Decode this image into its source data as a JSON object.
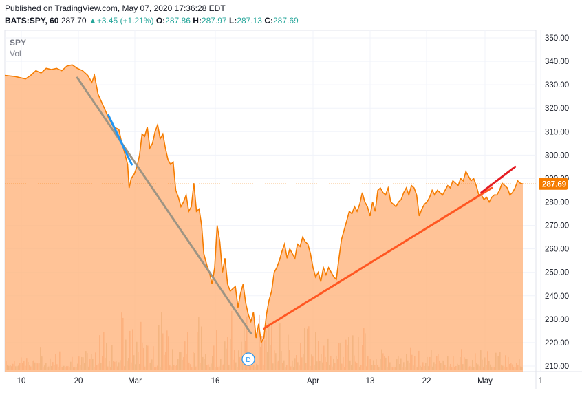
{
  "header": {
    "published": "Published on TradingView.com, May 07, 2020 17:36:28 EDT",
    "symbol": "BATS:SPY, 60",
    "last": "287.70",
    "change_icon": "triangle-up-icon",
    "change": "+3.45 (+1.21%)",
    "open_label": "O:",
    "open": "287.86",
    "high_label": "H:",
    "high": "287.97",
    "low_label": "L:",
    "low": "287.13",
    "close_label": "C:",
    "close": "287.69"
  },
  "legend": {
    "series": "SPY",
    "volume": "Vol"
  },
  "colors": {
    "price_line": "#f57c00",
    "price_fill": "#ffb27a",
    "up_change": "#26a69a",
    "volume_up": "#c3b58a",
    "volume_down": "#f0a27e",
    "trend_gray": "#9e9483",
    "trend_orange": "#ff5722",
    "trend_red": "#e51c23",
    "trend_blue": "#2196f3"
  },
  "dividend_marker": "D",
  "chart_data": {
    "type": "area",
    "series_name": "SPY",
    "x_ticks": [
      "10",
      "20",
      "Mar",
      "16",
      "Apr",
      "13",
      "22",
      "May",
      "1"
    ],
    "y_ticks": [
      "210.00",
      "220.00",
      "230.00",
      "240.00",
      "250.00",
      "260.00",
      "270.00",
      "280.00",
      "290.00",
      "300.00",
      "310.00",
      "320.00",
      "330.00",
      "340.00",
      "350.00"
    ],
    "ylim": [
      210,
      350
    ],
    "last_price_label": "287.69",
    "grid": true,
    "x_index_range": [
      0,
      100
    ],
    "points": [
      [
        0,
        334
      ],
      [
        2,
        333.5
      ],
      [
        4,
        332.5
      ],
      [
        5,
        334
      ],
      [
        6,
        336
      ],
      [
        7,
        335
      ],
      [
        8,
        337
      ],
      [
        9,
        336.5
      ],
      [
        10,
        337
      ],
      [
        11,
        336
      ],
      [
        12,
        338
      ],
      [
        13,
        338.5
      ],
      [
        14,
        337
      ],
      [
        15,
        336
      ],
      [
        16,
        334
      ],
      [
        16.8,
        331
      ],
      [
        17.3,
        334
      ],
      [
        18,
        326
      ],
      [
        19,
        321
      ],
      [
        20,
        316
      ],
      [
        21,
        312
      ],
      [
        22,
        311
      ],
      [
        22.5,
        306
      ],
      [
        23,
        302
      ],
      [
        23.7,
        296
      ],
      [
        24,
        286
      ],
      [
        24.4,
        290
      ],
      [
        25,
        292
      ],
      [
        25.5,
        295
      ],
      [
        26,
        300
      ],
      [
        26.5,
        309
      ],
      [
        27,
        308
      ],
      [
        27.5,
        312
      ],
      [
        28,
        303
      ],
      [
        28.5,
        305
      ],
      [
        29,
        310
      ],
      [
        29.5,
        313
      ],
      [
        30,
        307
      ],
      [
        30.5,
        309
      ],
      [
        31,
        303
      ],
      [
        31.5,
        298
      ],
      [
        32,
        296
      ],
      [
        32.5,
        297
      ],
      [
        33,
        285
      ],
      [
        33.5,
        282
      ],
      [
        34,
        278
      ],
      [
        34.5,
        280
      ],
      [
        35,
        283
      ],
      [
        35.5,
        276
      ],
      [
        36,
        278
      ],
      [
        36.5,
        288
      ],
      [
        37,
        276
      ],
      [
        37.5,
        277
      ],
      [
        38,
        270
      ],
      [
        38.4,
        258
      ],
      [
        39,
        253
      ],
      [
        39.5,
        250
      ],
      [
        40,
        245
      ],
      [
        40.5,
        252
      ],
      [
        41,
        270
      ],
      [
        41.5,
        263
      ],
      [
        42,
        250
      ],
      [
        42.5,
        256
      ],
      [
        43,
        245
      ],
      [
        43.5,
        242
      ],
      [
        44,
        243
      ],
      [
        44.5,
        244
      ],
      [
        45,
        235
      ],
      [
        45.5,
        241
      ],
      [
        46,
        245
      ],
      [
        46.5,
        237
      ],
      [
        47,
        232
      ],
      [
        47.5,
        229
      ],
      [
        48,
        233
      ],
      [
        48.5,
        222
      ],
      [
        49,
        228
      ],
      [
        49.5,
        220
      ],
      [
        50,
        222
      ],
      [
        50.5,
        232
      ],
      [
        51,
        238
      ],
      [
        51.5,
        242
      ],
      [
        52,
        250
      ],
      [
        52.5,
        252
      ],
      [
        53,
        255
      ],
      [
        53.5,
        259
      ],
      [
        54,
        262
      ],
      [
        54.5,
        256
      ],
      [
        55,
        260
      ],
      [
        55.5,
        258
      ],
      [
        56,
        256
      ],
      [
        56.5,
        262
      ],
      [
        57,
        261
      ],
      [
        57.5,
        265
      ],
      [
        58,
        263
      ],
      [
        58.5,
        262
      ],
      [
        59,
        258
      ],
      [
        59.5,
        252
      ],
      [
        60,
        248
      ],
      [
        60.5,
        250
      ],
      [
        61,
        246
      ],
      [
        61.5,
        252
      ],
      [
        62,
        249
      ],
      [
        62.5,
        252
      ],
      [
        63,
        250
      ],
      [
        63.5,
        248
      ],
      [
        64,
        247
      ],
      [
        64.5,
        256
      ],
      [
        65,
        264
      ],
      [
        65.5,
        268
      ],
      [
        66,
        272
      ],
      [
        66.5,
        276
      ],
      [
        67,
        275
      ],
      [
        67.5,
        278
      ],
      [
        68,
        276
      ],
      [
        68.5,
        279
      ],
      [
        69,
        284
      ],
      [
        69.5,
        280
      ],
      [
        70,
        278
      ],
      [
        70.5,
        274
      ],
      [
        71,
        280
      ],
      [
        71.5,
        276
      ],
      [
        72,
        285
      ],
      [
        72.5,
        286
      ],
      [
        73,
        284
      ],
      [
        73.5,
        283
      ],
      [
        74,
        286
      ],
      [
        74.5,
        280
      ],
      [
        75,
        279
      ],
      [
        75.5,
        278
      ],
      [
        76,
        280
      ],
      [
        76.5,
        281
      ],
      [
        77,
        284
      ],
      [
        77.5,
        286
      ],
      [
        78,
        283
      ],
      [
        78.5,
        287
      ],
      [
        79,
        286
      ],
      [
        79.5,
        283
      ],
      [
        80,
        274
      ],
      [
        80.5,
        277
      ],
      [
        81,
        279
      ],
      [
        81.5,
        280
      ],
      [
        82,
        282
      ],
      [
        82.5,
        285
      ],
      [
        83,
        283
      ],
      [
        83.5,
        285
      ],
      [
        84,
        284
      ],
      [
        84.5,
        283
      ],
      [
        85,
        285
      ],
      [
        85.5,
        287
      ],
      [
        86,
        286
      ],
      [
        86.5,
        289
      ],
      [
        87,
        288
      ],
      [
        87.5,
        287
      ],
      [
        88,
        290
      ],
      [
        88.5,
        289
      ],
      [
        89,
        293
      ],
      [
        89.5,
        291
      ],
      [
        90,
        289
      ],
      [
        90.5,
        290
      ],
      [
        91,
        287
      ],
      [
        91.5,
        283
      ],
      [
        92,
        283
      ],
      [
        92.5,
        281
      ],
      [
        93,
        282
      ],
      [
        93.5,
        280
      ],
      [
        94,
        282
      ],
      [
        94.5,
        283
      ],
      [
        95,
        283
      ],
      [
        95.5,
        285
      ],
      [
        96,
        288
      ],
      [
        96.5,
        287
      ],
      [
        97,
        286
      ],
      [
        97.5,
        283
      ],
      [
        98,
        284
      ],
      [
        98.5,
        286
      ],
      [
        99,
        289
      ],
      [
        99.5,
        288
      ],
      [
        100,
        287.7
      ]
    ],
    "trend_lines": [
      {
        "color": "trend_gray",
        "from": [
          14,
          333
        ],
        "to": [
          47.5,
          224
        ]
      },
      {
        "color": "trend_orange",
        "from": [
          50,
          226
        ],
        "to": [
          94,
          286
        ]
      },
      {
        "color": "trend_red",
        "from": [
          92,
          284
        ],
        "to": [
          98.5,
          295
        ]
      },
      {
        "color": "trend_blue",
        "from": [
          20,
          317
        ],
        "to": [
          24.5,
          296
        ]
      }
    ]
  }
}
